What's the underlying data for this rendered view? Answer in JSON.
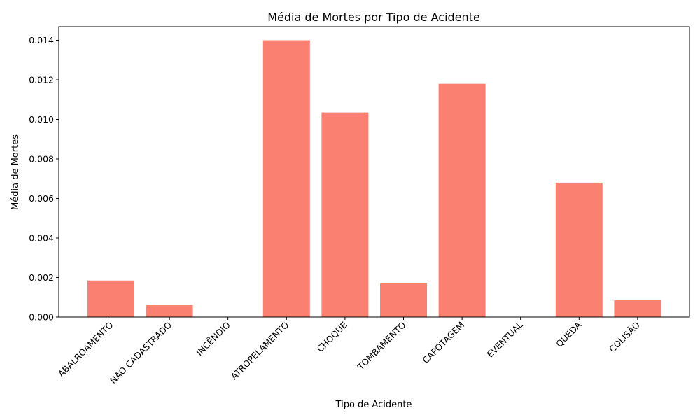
{
  "chart_data": {
    "type": "bar",
    "title": "Média de Mortes por Tipo de Acidente",
    "xlabel": "Tipo de Acidente",
    "ylabel": "Média de Mortes",
    "categories": [
      "ABALROAMENTO",
      "NAO CADASTRADO",
      "INCÊNDIO",
      "ATROPELAMENTO",
      "CHOQUE",
      "TOMBAMENTO",
      "CAPOTAGEM",
      "EVENTUAL",
      "QUEDA",
      "COLISÃO"
    ],
    "values": [
      0.00185,
      0.0006,
      0.0,
      0.014,
      0.01035,
      0.0017,
      0.0118,
      0.0,
      0.0068,
      0.00085
    ],
    "ylim": [
      0,
      0.01469
    ],
    "yticks": [
      0.0,
      0.002,
      0.004,
      0.006,
      0.008,
      0.01,
      0.012,
      0.014
    ],
    "ytick_labels": [
      "0.000",
      "0.002",
      "0.004",
      "0.006",
      "0.008",
      "0.010",
      "0.012",
      "0.014"
    ],
    "bar_color": "#fa8072",
    "grid": false
  }
}
